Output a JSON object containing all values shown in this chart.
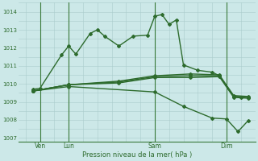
{
  "background_color": "#cce8e8",
  "grid_color": "#aacccc",
  "line_color": "#2d6b2d",
  "title": "Pression niveau de la mer( hPa )",
  "ylabel_values": [
    1007,
    1008,
    1009,
    1010,
    1011,
    1012,
    1013,
    1014
  ],
  "ylim": [
    1006.8,
    1014.5
  ],
  "xlim": [
    -0.5,
    16.0
  ],
  "xtick_labels": [
    "Ven",
    "Lun",
    "Sam",
    "Dim"
  ],
  "xtick_positions": [
    1,
    3,
    9,
    14
  ],
  "vline_positions": [
    1,
    3,
    9,
    14
  ],
  "series": [
    {
      "x": [
        0.5,
        1.0,
        2.5,
        3.0,
        3.5,
        4.5,
        5.0,
        5.5,
        6.5,
        7.5,
        8.5,
        9.0,
        9.5,
        10.0,
        10.5,
        11.0,
        12.0,
        13.0,
        13.5,
        14.5,
        15.0
      ],
      "y": [
        1009.7,
        1009.75,
        1011.6,
        1012.1,
        1011.65,
        1012.8,
        1013.0,
        1012.65,
        1012.1,
        1012.65,
        1012.7,
        1013.75,
        1013.85,
        1013.3,
        1013.55,
        1011.05,
        1010.75,
        1010.65,
        1010.45,
        1009.3,
        1009.25
      ],
      "marker": "D",
      "markersize": 2.0,
      "linewidth": 1.0
    },
    {
      "x": [
        0.5,
        3.0,
        9.0,
        11.0,
        13.0,
        14.0,
        14.8,
        15.5
      ],
      "y": [
        1009.6,
        1009.85,
        1009.55,
        1008.75,
        1008.1,
        1008.05,
        1007.35,
        1007.95
      ],
      "marker": "D",
      "markersize": 2.0,
      "linewidth": 1.0
    },
    {
      "x": [
        0.5,
        3.0,
        6.5,
        9.0,
        11.5,
        13.5,
        14.5,
        15.5
      ],
      "y": [
        1009.6,
        1009.95,
        1010.15,
        1010.45,
        1010.55,
        1010.5,
        1009.35,
        1009.3
      ],
      "marker": "D",
      "markersize": 2.0,
      "linewidth": 1.0
    },
    {
      "x": [
        0.5,
        3.0,
        6.5,
        9.0,
        11.5,
        13.5,
        14.5,
        15.5
      ],
      "y": [
        1009.6,
        1009.95,
        1010.1,
        1010.4,
        1010.45,
        1010.45,
        1009.3,
        1009.25
      ],
      "marker": "D",
      "markersize": 2.0,
      "linewidth": 1.0
    },
    {
      "x": [
        0.5,
        3.0,
        6.5,
        9.0,
        11.5,
        13.5,
        14.5,
        15.5
      ],
      "y": [
        1009.6,
        1009.95,
        1010.05,
        1010.35,
        1010.35,
        1010.4,
        1009.25,
        1009.2
      ],
      "marker": "D",
      "markersize": 2.0,
      "linewidth": 1.0
    }
  ]
}
